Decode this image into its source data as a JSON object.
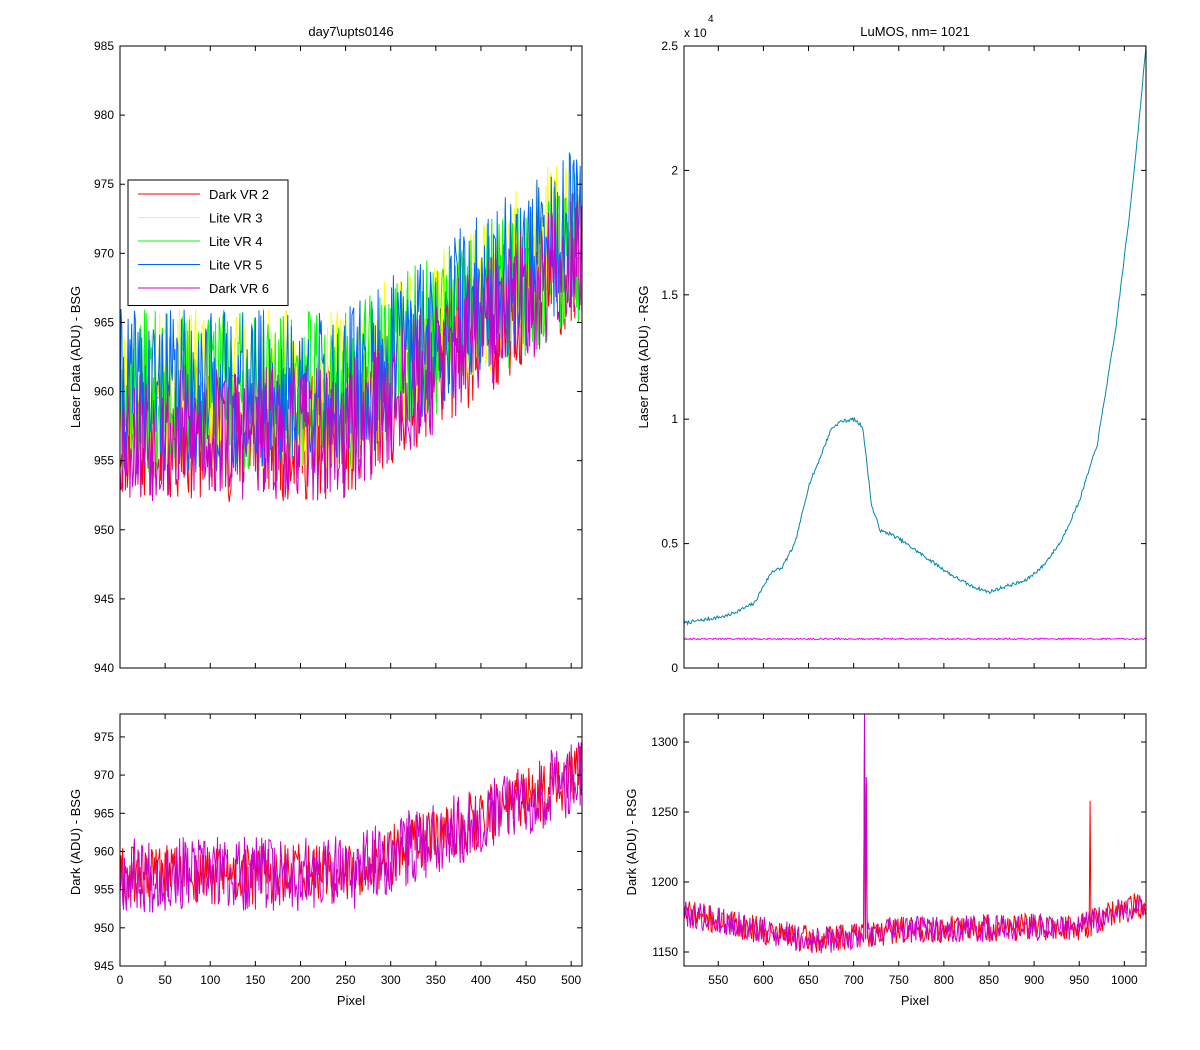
{
  "figure": {
    "background": "#ffffff"
  },
  "chart_data": [
    {
      "id": "tl",
      "type": "line",
      "title": "day7\\upts0146",
      "xlabel": "",
      "ylabel": "Laser Data (ADU) - BSG",
      "xlim": [
        0,
        512
      ],
      "ylim": [
        940,
        985
      ],
      "xticks": [
        0,
        50,
        100,
        150,
        200,
        250,
        300,
        350,
        400,
        450,
        500
      ],
      "show_xticklabels": false,
      "yticks": [
        940,
        945,
        950,
        955,
        960,
        965,
        970,
        975,
        980,
        985
      ],
      "grid": false,
      "legend": {
        "placement": "upper-left"
      },
      "series": [
        {
          "name": "Dark VR 2",
          "color": "#ff0000",
          "trend": [
            [
              0,
              957
            ],
            [
              250,
              957
            ],
            [
              512,
              970
            ]
          ],
          "noise": 5,
          "seed": 11
        },
        {
          "name": "Lite VR 3",
          "color": "#ffff00",
          "trend": [
            [
              0,
              960
            ],
            [
              250,
              960
            ],
            [
              512,
              972
            ]
          ],
          "noise": 6,
          "seed": 23
        },
        {
          "name": "Lite VR 4",
          "color": "#00ff00",
          "trend": [
            [
              0,
              960
            ],
            [
              250,
              960
            ],
            [
              512,
              971
            ]
          ],
          "noise": 6,
          "seed": 37
        },
        {
          "name": "Lite VR 5",
          "color": "#0066ff",
          "trend": [
            [
              0,
              960
            ],
            [
              250,
              960
            ],
            [
              512,
              972
            ]
          ],
          "noise": 6,
          "seed": 41
        },
        {
          "name": "Dark VR 6",
          "color": "#cc00cc",
          "trend": [
            [
              0,
              957
            ],
            [
              250,
              957
            ],
            [
              512,
              970
            ]
          ],
          "noise": 5,
          "seed": 53
        }
      ]
    },
    {
      "id": "tr",
      "type": "line",
      "title": "LuMOS, nm= 1021",
      "xlabel": "",
      "ylabel": "Laser Data (ADU) - RSG",
      "xlim": [
        512,
        1024
      ],
      "ylim": [
        0,
        25000
      ],
      "xticks": [
        550,
        600,
        650,
        700,
        750,
        800,
        850,
        900,
        950,
        1000
      ],
      "show_xticklabels": false,
      "yticks": [
        0,
        5000,
        10000,
        15000,
        20000,
        25000
      ],
      "yticklabels": [
        "0",
        "0.5",
        "1",
        "1.5",
        "2",
        "2.5"
      ],
      "y_exponent_label": "x 10",
      "y_exponent": "4",
      "grid": false,
      "series": [
        {
          "color": "#0088aa",
          "trend": [
            [
              512,
              1800
            ],
            [
              560,
              2100
            ],
            [
              590,
              2600
            ],
            [
              600,
              3300
            ],
            [
              610,
              3900
            ],
            [
              620,
              4000
            ],
            [
              635,
              5000
            ],
            [
              645,
              6500
            ],
            [
              650,
              7300
            ],
            [
              660,
              8200
            ],
            [
              675,
              9600
            ],
            [
              685,
              9900
            ],
            [
              700,
              10000
            ],
            [
              710,
              9700
            ],
            [
              720,
              6500
            ],
            [
              730,
              5500
            ],
            [
              740,
              5400
            ],
            [
              750,
              5200
            ],
            [
              770,
              4700
            ],
            [
              790,
              4200
            ],
            [
              810,
              3700
            ],
            [
              830,
              3300
            ],
            [
              850,
              3050
            ],
            [
              870,
              3300
            ],
            [
              890,
              3500
            ],
            [
              910,
              4100
            ],
            [
              930,
              5100
            ],
            [
              950,
              6700
            ],
            [
              970,
              9000
            ],
            [
              990,
              13500
            ],
            [
              1005,
              18000
            ],
            [
              1015,
              21500
            ],
            [
              1024,
              25000
            ]
          ],
          "noise": 70,
          "seed": 7
        },
        {
          "color": "#ff00ff",
          "trend": [
            [
              512,
              1170
            ],
            [
              1024,
              1170
            ]
          ],
          "noise": 30,
          "seed": 9
        }
      ]
    },
    {
      "id": "bl",
      "type": "line",
      "title": "",
      "xlabel": "Pixel",
      "ylabel": "Dark (ADU) - BSG",
      "xlim": [
        0,
        512
      ],
      "ylim": [
        945,
        978
      ],
      "xticks": [
        0,
        50,
        100,
        150,
        200,
        250,
        300,
        350,
        400,
        450,
        500
      ],
      "show_xticklabels": true,
      "yticks": [
        945,
        950,
        955,
        960,
        965,
        970,
        975
      ],
      "grid": false,
      "series": [
        {
          "color": "#ff0000",
          "trend": [
            [
              0,
              957
            ],
            [
              250,
              957
            ],
            [
              512,
              970
            ]
          ],
          "noise": 4,
          "seed": 61
        },
        {
          "color": "#cc00cc",
          "trend": [
            [
              0,
              957
            ],
            [
              250,
              957
            ],
            [
              512,
              970
            ]
          ],
          "noise": 5,
          "seed": 67
        }
      ]
    },
    {
      "id": "br",
      "type": "line",
      "title": "",
      "xlabel": "Pixel",
      "ylabel": "Dark (ADU) - RSG",
      "xlim": [
        512,
        1024
      ],
      "ylim": [
        1140,
        1320
      ],
      "xticks": [
        550,
        600,
        650,
        700,
        750,
        800,
        850,
        900,
        950,
        1000
      ],
      "show_xticklabels": true,
      "yticks": [
        1150,
        1200,
        1250,
        1300
      ],
      "grid": false,
      "series": [
        {
          "color": "#ff0000",
          "trend": [
            [
              512,
              1178
            ],
            [
              600,
              1165
            ],
            [
              660,
              1158
            ],
            [
              750,
              1166
            ],
            [
              850,
              1167
            ],
            [
              950,
              1168
            ],
            [
              1024,
              1185
            ]
          ],
          "noise": 10,
          "seed": 71,
          "spikes": [
            [
              712,
              1315
            ],
            [
              714,
              1270
            ],
            [
              962,
              1258
            ]
          ]
        },
        {
          "color": "#cc00cc",
          "trend": [
            [
              512,
              1178
            ],
            [
              600,
              1165
            ],
            [
              660,
              1158
            ],
            [
              750,
              1166
            ],
            [
              850,
              1167
            ],
            [
              950,
              1168
            ],
            [
              1024,
              1185
            ]
          ],
          "noise": 10,
          "seed": 79,
          "spikes": [
            [
              712,
              1320
            ],
            [
              714,
              1275
            ]
          ]
        }
      ]
    }
  ]
}
